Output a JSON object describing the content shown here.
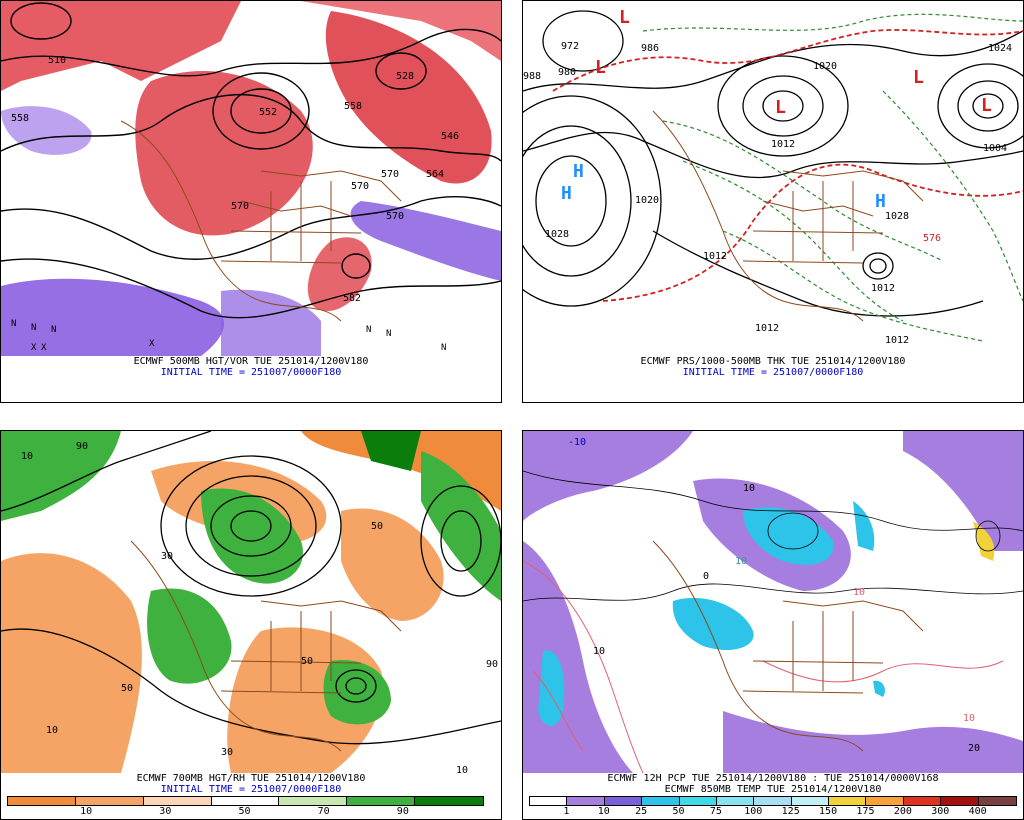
{
  "panels": {
    "top_left": {
      "title": "ECMWF 500MB HGT/VOR TUE 251014/1200V180",
      "subtitle": "INITIAL TIME = 251007/0000F180",
      "labels": [
        "510",
        "552",
        "558",
        "570",
        "564",
        "558",
        "528",
        "582",
        "546",
        "570",
        "570",
        "570",
        "N",
        "N",
        "N",
        "X",
        "X",
        "X",
        "N",
        "N",
        "N"
      ]
    },
    "top_right": {
      "title": "ECMWF PRS/1000-500MB THK TUE 251014/1200V180",
      "subtitle": "INITIAL TIME = 251007/0000F180",
      "labels": [
        "972",
        "986",
        "980",
        "988",
        "1020",
        "1028",
        "1012",
        "1004",
        "1028",
        "1024",
        "1012",
        "1012",
        "1012",
        "1020",
        "576",
        "1012",
        "H",
        "H",
        "H",
        "L",
        "L",
        "L",
        "L",
        "L"
      ]
    },
    "bottom_left": {
      "title": "ECMWF 700MB HGT/RH TUE 251014/1200V180",
      "subtitle": "INITIAL TIME = 251007/0000F180",
      "legend": {
        "colors": [
          "#f08b3c",
          "#f6a465",
          "#fbd7b8",
          "#ffffff",
          "#c9e7b0",
          "#3eb13e",
          "#0a7d0a"
        ],
        "ticks": [
          "10",
          "30",
          "50",
          "70",
          "90"
        ]
      },
      "labels": [
        "10",
        "50",
        "30",
        "10",
        "50",
        "90",
        "10",
        "30",
        "50",
        "90"
      ]
    },
    "bottom_right": {
      "title": "ECMWF 12H PCP TUE 251014/1200V180 : TUE 251014/0000V168",
      "subtitle": "ECMWF 850MB TEMP TUE 251014/1200V180",
      "legend": {
        "colors": [
          "#ffffff",
          "#a67ee0",
          "#7a5fd8",
          "#2ec3e8",
          "#3fd9e8",
          "#87e4ee",
          "#a7dff2",
          "#c0f0f5",
          "#f2d23a",
          "#f7a23a",
          "#e0331d",
          "#a41010",
          "#7a4040"
        ],
        "ticks": [
          "1",
          "10",
          "25",
          "50",
          "75",
          "100",
          "125",
          "150",
          "175",
          "200",
          "300",
          "400"
        ]
      },
      "labels": [
        "10",
        "10",
        "10",
        "20",
        "0",
        "-10",
        "10",
        "10"
      ]
    }
  }
}
